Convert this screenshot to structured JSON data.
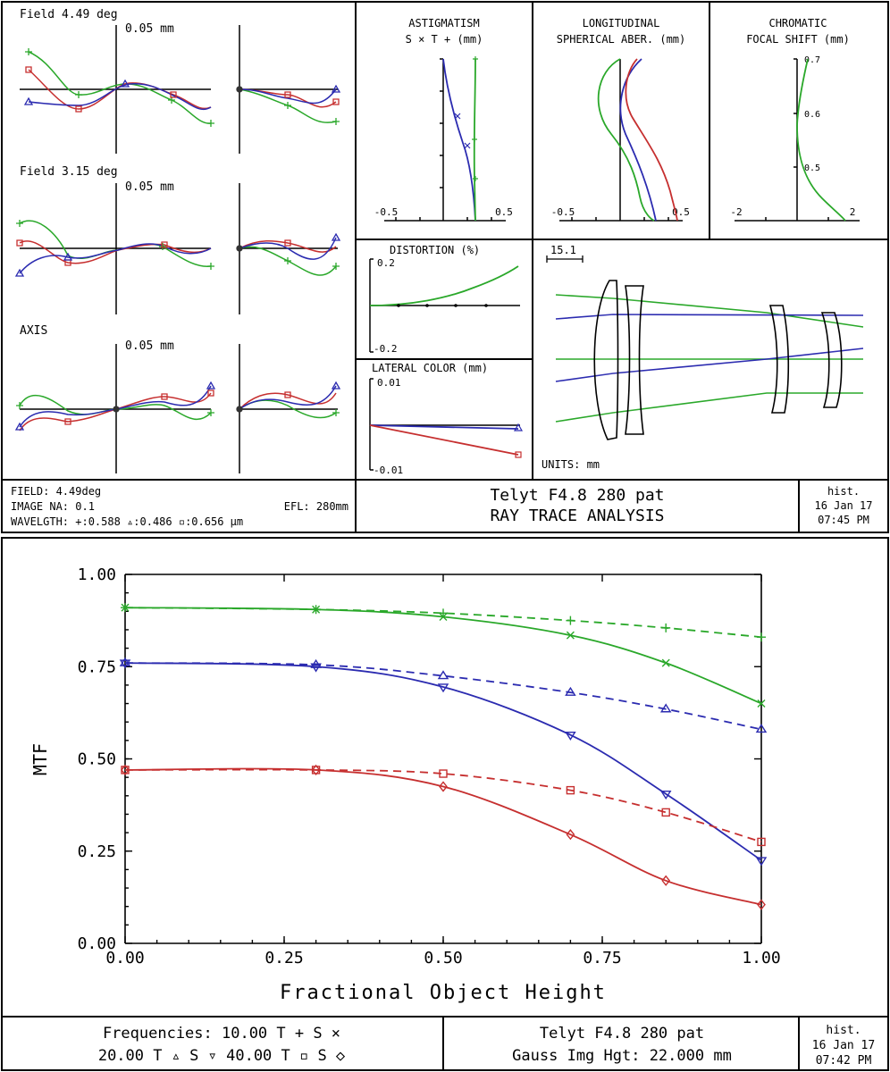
{
  "colors": {
    "green": "#2aa82a",
    "blue": "#2b2bb0",
    "red": "#c62f2f",
    "frame": "#000000"
  },
  "ray_trace": {
    "fan_labels": {
      "field1": "Field 4.49 deg",
      "field2": "Field 3.15 deg",
      "axis": "AXIS",
      "scale1": "0.05 mm",
      "scale2": "0.05 mm",
      "scale3": "0.05 mm"
    },
    "astig": {
      "title1": "ASTIGMATISM",
      "title2": "S × T + (mm)",
      "xmin": "-0.5",
      "xmax": "0.5"
    },
    "longit": {
      "title1": "LONGITUDINAL",
      "title2": "SPHERICAL ABER. (mm)",
      "xmin": "-0.5",
      "xmax": "0.5"
    },
    "chrom": {
      "title1": "CHROMATIC",
      "title2": "FOCAL SHIFT (mm)",
      "xmin": "-2",
      "xmax": "2",
      "y1": "0.7",
      "y2": "0.6",
      "y3": "0.5"
    },
    "distortion": {
      "title": "DISTORTION (%)",
      "ymax": "0.2",
      "ymin": "-0.2"
    },
    "lateral": {
      "title": "LATERAL COLOR (mm)",
      "ymax": "0.01",
      "ymin": "-0.01"
    },
    "layout": {
      "scale": "15.1",
      "units": "UNITS: mm"
    },
    "footer": {
      "field": "FIELD: 4.49deg",
      "na": "IMAGE NA: 0.1",
      "efl": "EFL: 280mm",
      "wavelength": "WAVELGTH: +:0.588 ▵:0.486 ▫:0.656 µm",
      "title1": "Telyt F4.8 280 pat",
      "title2": "RAY TRACE ANALYSIS",
      "hist": "hist.",
      "date": "16 Jan 17",
      "time": "07:45 PM"
    }
  },
  "mtf": {
    "footer": {
      "freq1": "Frequencies: 10.00 T + S ×",
      "freq2": "20.00 T ▵ S ▿ 40.00 T ▫ S ◇",
      "title1": "Telyt F4.8 280 pat",
      "title2": "Gauss Img Hgt: 22.000 mm",
      "hist": "hist.",
      "date": "16 Jan 17",
      "time": "07:42 PM"
    }
  },
  "chart_data": {
    "type": "line",
    "xlabel": "Fractional Object Height",
    "ylabel": "MTF",
    "xlim": [
      0,
      1
    ],
    "ylim": [
      0,
      1
    ],
    "xticks": [
      "0.00",
      "0.25",
      "0.50",
      "0.75",
      "1.00"
    ],
    "yticks": [
      "0.00",
      "0.25",
      "0.50",
      "0.75",
      "1.00"
    ],
    "x": [
      0,
      0.3,
      0.5,
      0.7,
      0.85,
      1.0
    ],
    "series": [
      {
        "name": "10.00 T",
        "color": "#2aa82a",
        "dash": true,
        "marker": "plus",
        "values": [
          0.91,
          0.905,
          0.895,
          0.875,
          0.855,
          0.83
        ]
      },
      {
        "name": "10.00 S",
        "color": "#2aa82a",
        "dash": false,
        "marker": "x",
        "values": [
          0.91,
          0.905,
          0.885,
          0.835,
          0.76,
          0.65
        ]
      },
      {
        "name": "20.00 T",
        "color": "#2b2bb0",
        "dash": true,
        "marker": "tri-up",
        "values": [
          0.76,
          0.755,
          0.725,
          0.68,
          0.635,
          0.58
        ]
      },
      {
        "name": "20.00 S",
        "color": "#2b2bb0",
        "dash": false,
        "marker": "tri-down",
        "values": [
          0.76,
          0.75,
          0.695,
          0.565,
          0.405,
          0.225
        ]
      },
      {
        "name": "40.00 T",
        "color": "#c62f2f",
        "dash": true,
        "marker": "square",
        "values": [
          0.47,
          0.47,
          0.46,
          0.415,
          0.355,
          0.275
        ]
      },
      {
        "name": "40.00 S",
        "color": "#c62f2f",
        "dash": false,
        "marker": "diamond",
        "values": [
          0.47,
          0.47,
          0.425,
          0.295,
          0.17,
          0.105
        ]
      }
    ]
  }
}
